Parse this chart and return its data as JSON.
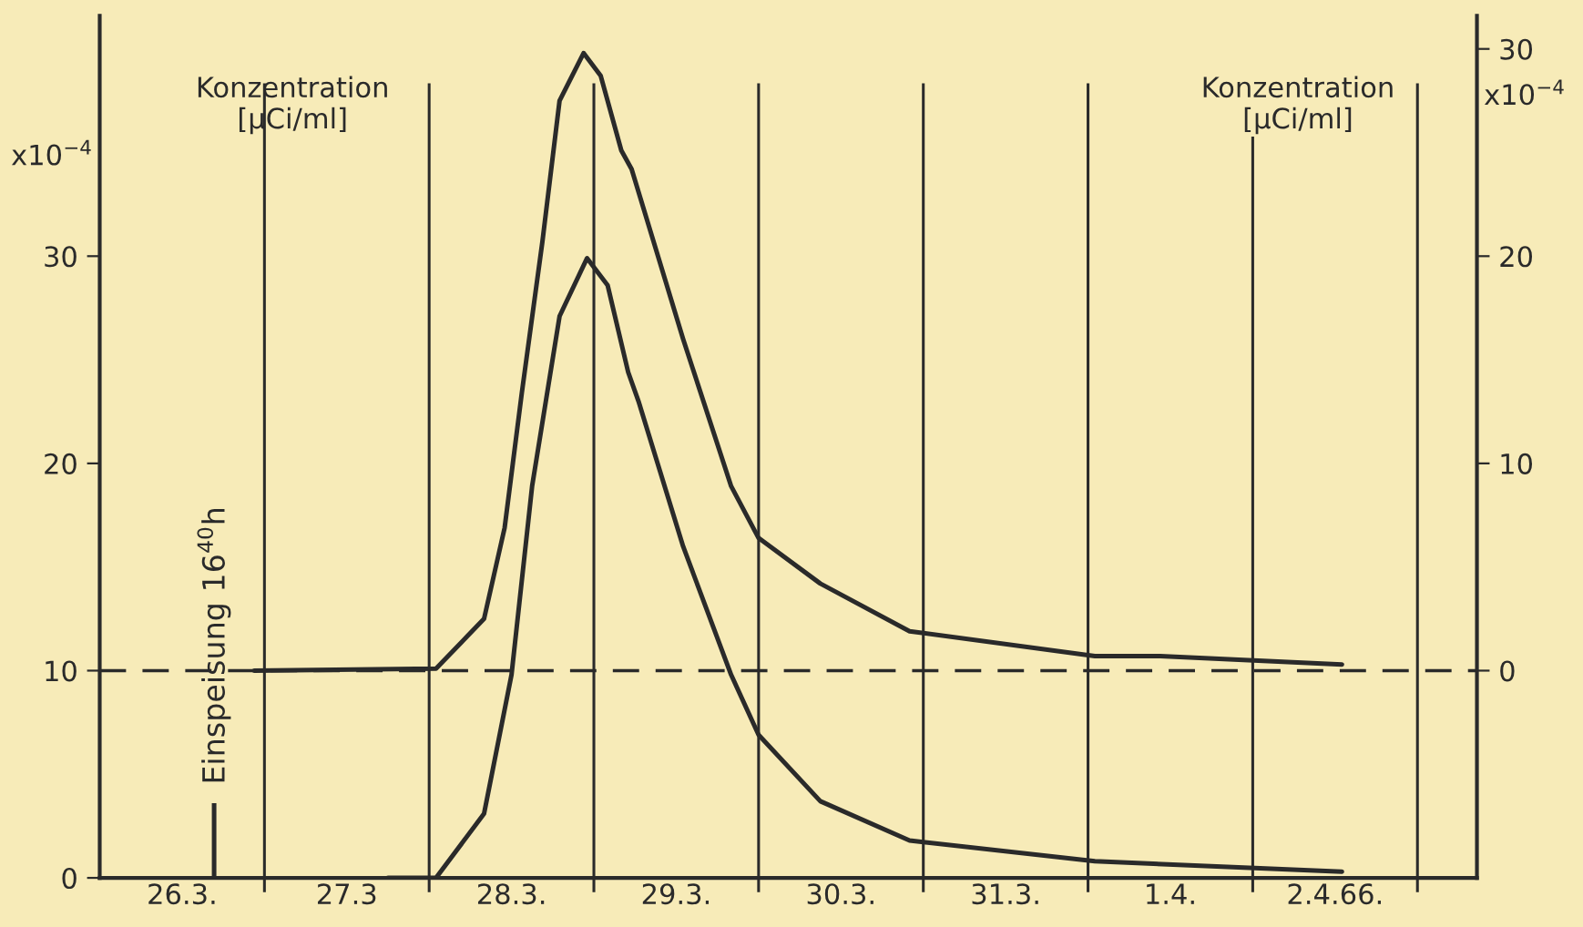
{
  "chart_data": {
    "type": "line",
    "ylabel": "Konzentration\n[µCi/ml]",
    "y2label": "Konzentration\n[µCi/ml]",
    "annotations": [
      "x10$^{−4}$",
      "x10$^{−4}$"
    ],
    "xlim": [
      "1966-03-26T00:00",
      "1966-04-03T08:40"
    ],
    "ylim": [
      0,
      41.6
    ],
    "y2lim": [
      -10,
      31.6
    ],
    "xticks": [
      {
        "value": "1966-03-26T12:00",
        "label": "26.3."
      },
      {
        "value": "1966-03-27T12:00",
        "label": "27.3"
      },
      {
        "value": "1966-03-28T12:00",
        "label": "28.3."
      },
      {
        "value": "1966-03-29T12:00",
        "label": "29.3."
      },
      {
        "value": "1966-03-30T12:00",
        "label": "30.3."
      },
      {
        "value": "1966-03-31T12:00",
        "label": "31.3."
      },
      {
        "value": "1966-04-01T12:00",
        "label": "1.4."
      },
      {
        "value": "1966-04-02T12:00",
        "label": "2.4.66."
      }
    ],
    "yticks": [
      0,
      10,
      20,
      30
    ],
    "y2ticks": [
      0,
      10,
      20,
      30
    ],
    "series": [
      {
        "color": "#2a2a2a",
        "x": [
          "1966-03-27T18:00",
          "1966-03-28T01:00",
          "1966-03-28T08:00",
          "1966-03-28T12:00",
          "1966-03-28T15:00",
          "1966-03-28T19:00",
          "1966-03-28T23:00",
          "1966-03-29T02:00",
          "1966-03-29T05:00",
          "1966-03-29T06:30",
          "1966-03-29T13:00",
          "1966-03-29T20:00",
          "1966-03-30T00:00",
          "1966-03-30T09:00",
          "1966-03-30T22:00",
          "1966-04-01T01:00",
          "1966-04-02T13:00"
        ],
        "values": [
          0,
          0,
          3.1,
          9.8,
          18.9,
          27.1,
          29.9,
          28.6,
          24.4,
          23.0,
          16.0,
          9.8,
          6.9,
          3.7,
          1.8,
          0.8,
          0.3
        ]
      },
      {
        "color": "#2a2a2a",
        "axis": "y2",
        "x": [
          "1966-03-26T22:30",
          "1966-03-28T01:00",
          "1966-03-28T08:00",
          "1966-03-28T11:00",
          "1966-03-28T13:30",
          "1966-03-28T16:30",
          "1966-03-28T19:00",
          "1966-03-28T22:30",
          "1966-03-29T01:00",
          "1966-03-29T04:00",
          "1966-03-29T05:30",
          "1966-03-29T13:00",
          "1966-03-29T20:00",
          "1966-03-30T00:00",
          "1966-03-30T09:00",
          "1966-03-30T22:00",
          "1966-04-01T01:00",
          "1966-04-01T10:30",
          "1966-04-02T13:00"
        ],
        "values": [
          0,
          0.1,
          2.5,
          6.9,
          13.4,
          20.7,
          27.5,
          29.8,
          28.7,
          25.1,
          24.2,
          16.0,
          8.9,
          6.4,
          4.2,
          1.9,
          0.7,
          0.7,
          0.3
        ]
      }
    ],
    "ref_lines": [
      {
        "axis": "y",
        "value": 10,
        "line_style": "dashed"
      },
      {
        "axis": "x",
        "value": "1966-03-26T16:40",
        "label": "Einspeisung 16$^{40}$h"
      },
      {
        "axis": "x",
        "value": "1966-03-27"
      },
      {
        "axis": "x",
        "value": "1966-03-28"
      },
      {
        "axis": "x",
        "value": "1966-03-29"
      },
      {
        "axis": "x",
        "value": "1966-03-30"
      },
      {
        "axis": "x",
        "value": "1966-03-31"
      },
      {
        "axis": "x",
        "value": "1966-04-01"
      },
      {
        "axis": "x",
        "value": "1966-04-02"
      },
      {
        "axis": "x",
        "value": "1966-04-03"
      }
    ],
    "grid": false,
    "marker": "none",
    "line_style": "solid"
  }
}
